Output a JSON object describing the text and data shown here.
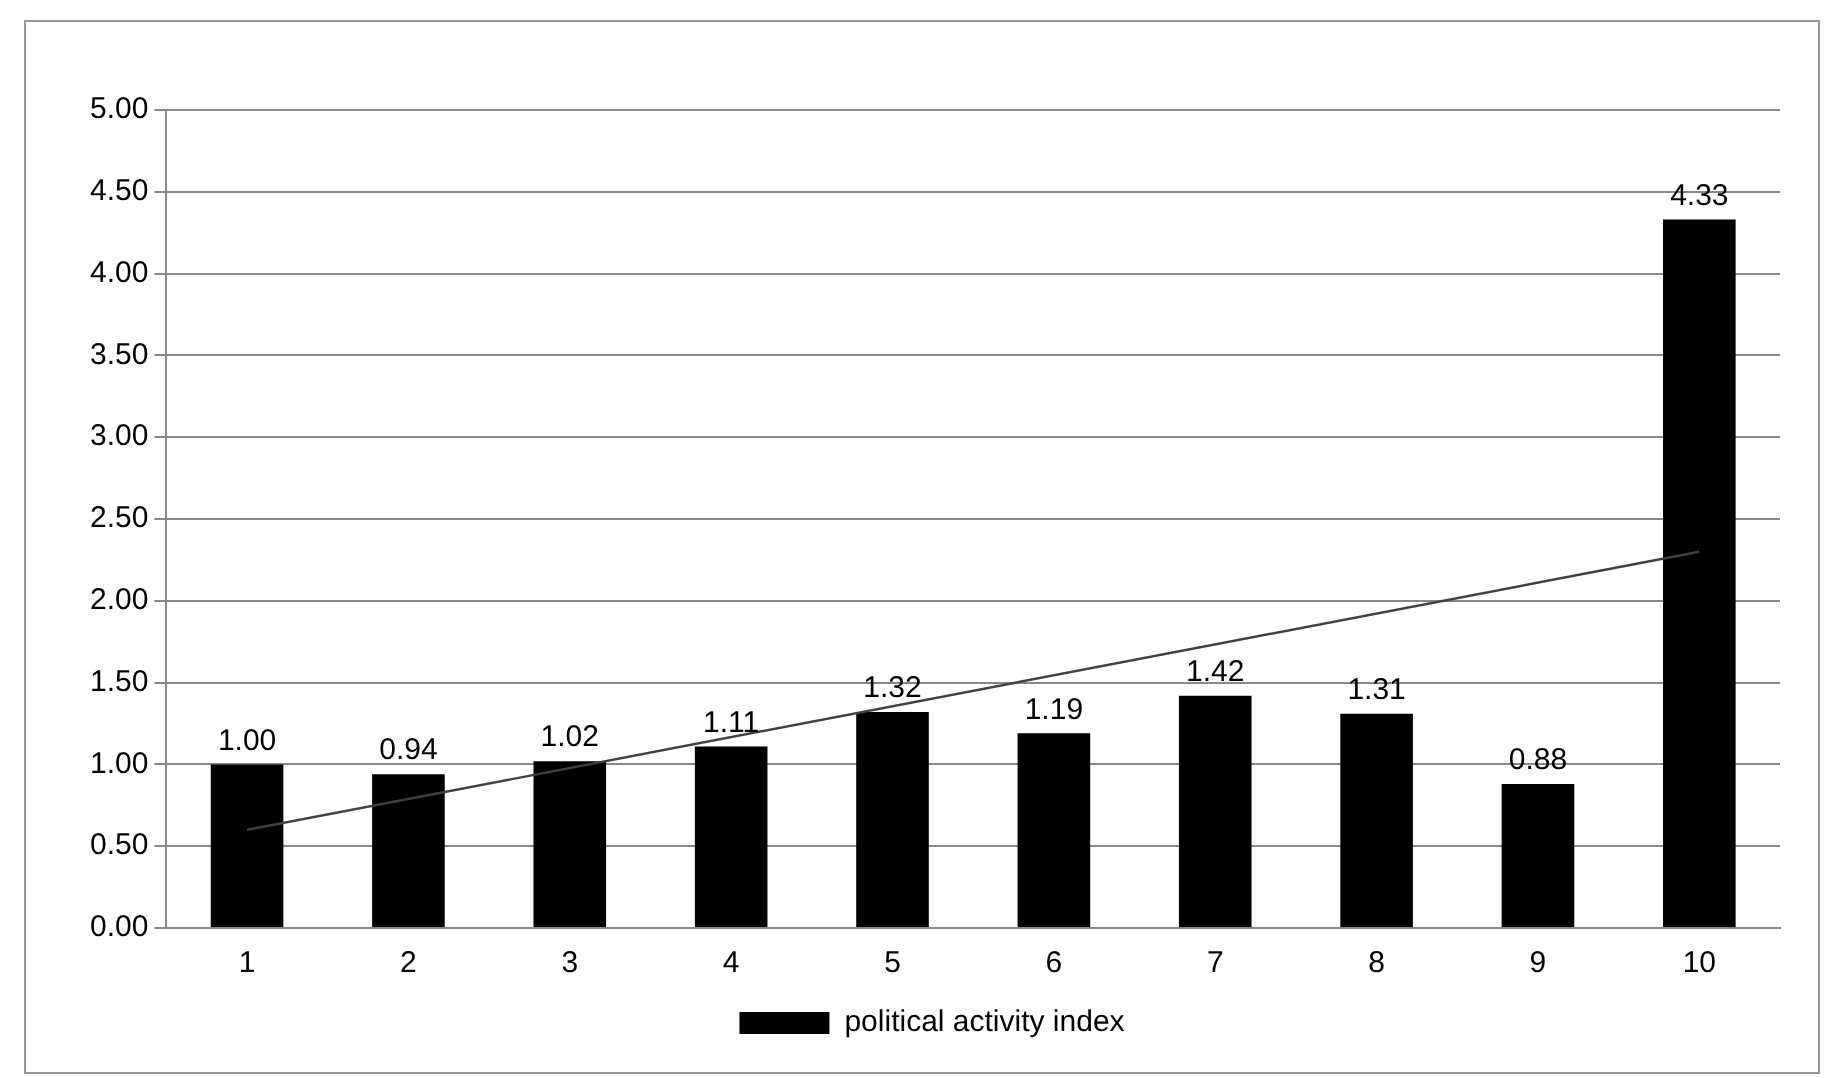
{
  "chart_data": {
    "type": "bar",
    "categories": [
      "1",
      "2",
      "3",
      "4",
      "5",
      "6",
      "7",
      "8",
      "9",
      "10"
    ],
    "series": [
      {
        "name": "political activity index",
        "color": "#000000",
        "values": [
          1.0,
          0.94,
          1.02,
          1.11,
          1.32,
          1.19,
          1.42,
          1.31,
          0.88,
          4.33
        ],
        "value_labels": [
          "1.00",
          "0.94",
          "1.02",
          "1.11",
          "1.32",
          "1.19",
          "1.42",
          "1.31",
          "0.88",
          "4.33"
        ]
      },
      {
        "type": "line",
        "color": "#404040",
        "x": [
          "1",
          "10"
        ],
        "values": [
          0.6,
          2.3
        ]
      }
    ],
    "ylim": [
      0,
      5
    ],
    "yticks": [
      {
        "value": 0,
        "label": "0.00"
      },
      {
        "value": 0.5,
        "label": "0.50"
      },
      {
        "value": 1,
        "label": "1.00"
      },
      {
        "value": 1.5,
        "label": "1.50"
      },
      {
        "value": 2,
        "label": "2.00"
      },
      {
        "value": 2.5,
        "label": "2.50"
      },
      {
        "value": 3,
        "label": "3.00"
      },
      {
        "value": 3.5,
        "label": "3.50"
      },
      {
        "value": 4,
        "label": "4.00"
      },
      {
        "value": 4.5,
        "label": "4.50"
      },
      {
        "value": 5,
        "label": "5.00"
      }
    ],
    "grid": "y",
    "legend": "bottom",
    "marker": "none"
  }
}
